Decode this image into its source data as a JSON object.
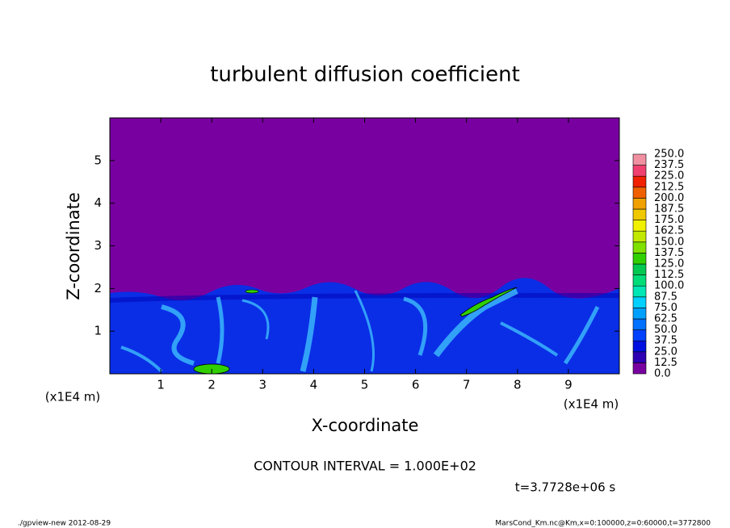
{
  "chart_data": {
    "type": "contour",
    "title": "turbulent diffusion coefficient",
    "xlabel": "X-coordinate",
    "ylabel": "Z-coordinate",
    "x_unit_left": "(x1E4 m)",
    "x_unit_right": "(x1E4 m)",
    "xlim": [
      0,
      10
    ],
    "xticks": [
      1,
      2,
      3,
      4,
      5,
      6,
      7,
      8,
      9
    ],
    "ylim": [
      0,
      6
    ],
    "yticks": [
      1,
      2,
      3,
      4,
      5
    ],
    "levels": [
      {
        "value": 0,
        "label": "0.0"
      },
      12.5,
      {
        "value": 25,
        "label": "25.0"
      },
      37.5,
      {
        "value": 50,
        "label": "50.0"
      },
      62.5,
      {
        "value": 75,
        "label": "75.0"
      },
      87.5,
      {
        "value": 100,
        "label": "100.0"
      },
      112.5,
      {
        "value": 125,
        "label": "125.0"
      },
      137.5,
      {
        "value": 150,
        "label": "150.0"
      },
      162.5,
      {
        "value": 175,
        "label": "175.0"
      },
      187.5,
      {
        "value": 200,
        "label": "200.0"
      },
      212.5,
      {
        "value": 225,
        "label": "225.0"
      },
      237.5,
      {
        "value": 250,
        "label": "250.0"
      }
    ],
    "colors": [
      "#7800a0",
      "#2d00b4",
      "#0010e0",
      "#0040ff",
      "#0070ff",
      "#00a0ff",
      "#00d0ff",
      "#00e6b4",
      "#00dc78",
      "#00c850",
      "#30d000",
      "#80e000",
      "#c0e800",
      "#f0f000",
      "#f0c800",
      "#f0a000",
      "#f06000",
      "#f02000",
      "#f04070",
      "#f090a0"
    ],
    "contour_interval": "CONTOUR INTERVAL = 1.000E+02",
    "time": "t=3.7728e+06 s",
    "footer_left": "./gpview-new  2012-08-29",
    "footer_right": "MarsCond_Km.nc@Km,x=0:100000,z=0:60000,t=3772800"
  }
}
